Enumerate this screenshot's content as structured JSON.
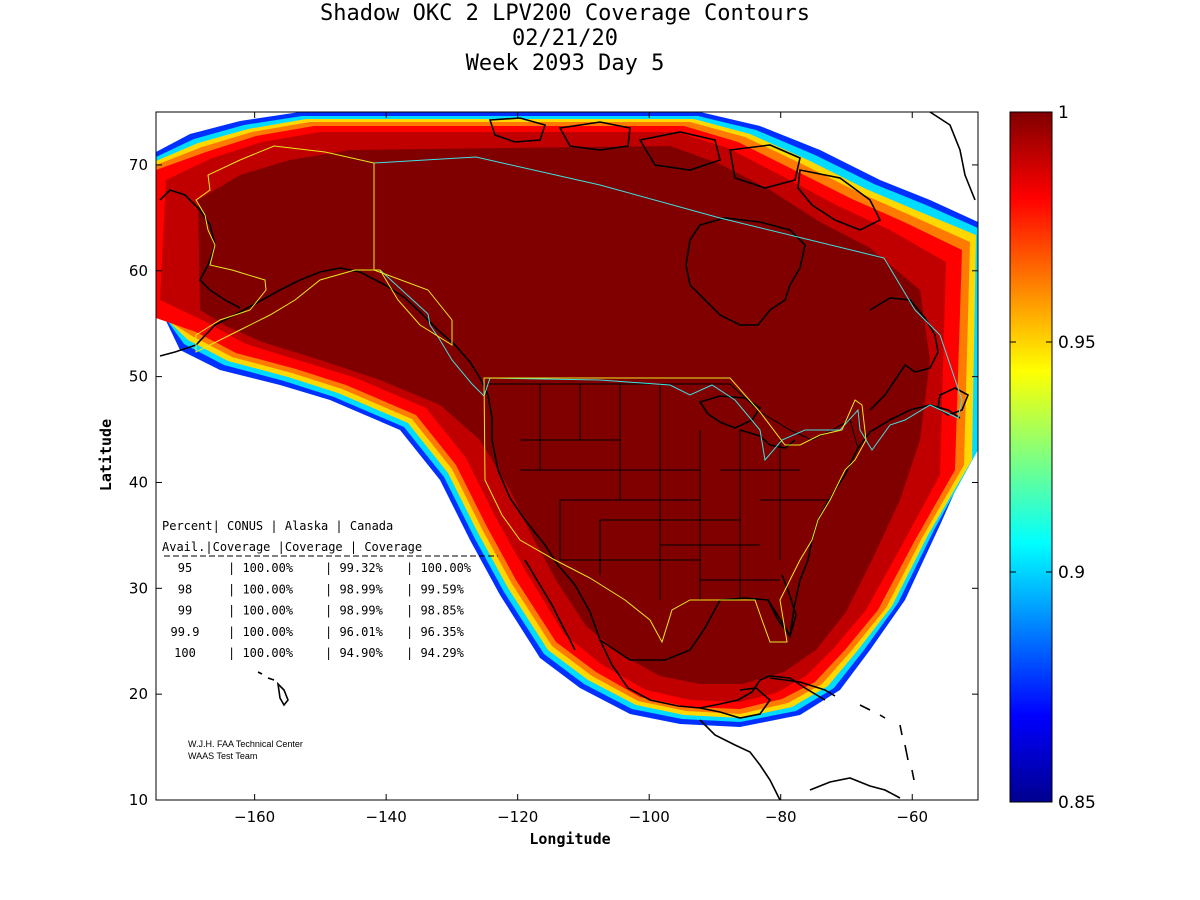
{
  "title": {
    "line1": "Shadow OKC 2 LPV200 Coverage Contours",
    "line2": "02/21/20",
    "line3": "Week 2093 Day 5"
  },
  "axes": {
    "xlabel": "Longitude",
    "ylabel": "Latitude",
    "xlim": [
      -175,
      -50
    ],
    "ylim": [
      10,
      75
    ],
    "xticks": [
      -160,
      -140,
      -120,
      -100,
      -80,
      -60
    ],
    "yticks": [
      10,
      20,
      30,
      40,
      50,
      60,
      70
    ]
  },
  "colorbar": {
    "range": [
      0.85,
      1.0
    ],
    "ticks": [
      "1",
      "0.95",
      "0.9",
      "0.85"
    ],
    "colormap": "jet"
  },
  "table": {
    "header1": [
      "Percent",
      "CONUS",
      "Alaska",
      "Canada"
    ],
    "header2": [
      "Avail.",
      "Coverage",
      "Coverage",
      "Coverage"
    ],
    "rows": [
      [
        "95",
        "100.00%",
        "99.32%",
        "100.00%"
      ],
      [
        "98",
        "100.00%",
        "98.99%",
        "99.59%"
      ],
      [
        "99",
        "100.00%",
        "98.99%",
        "98.85%"
      ],
      [
        "99.9",
        "100.00%",
        "96.01%",
        "96.35%"
      ],
      [
        "100",
        "100.00%",
        "94.90%",
        "94.29%"
      ]
    ]
  },
  "credit": {
    "line1": "W.J.H. FAA Technical Center",
    "line2": "WAAS Test Team"
  },
  "colors": {
    "dark_red": "#800000",
    "red": "#c00000",
    "bright_red": "#ff0000",
    "orange": "#ff7a00",
    "yellow": "#ffd800",
    "cyan": "#00dcff",
    "blue": "#0050ff",
    "service_volume_cyan": "#40e0e0",
    "service_volume_yellow": "#e8e820"
  }
}
